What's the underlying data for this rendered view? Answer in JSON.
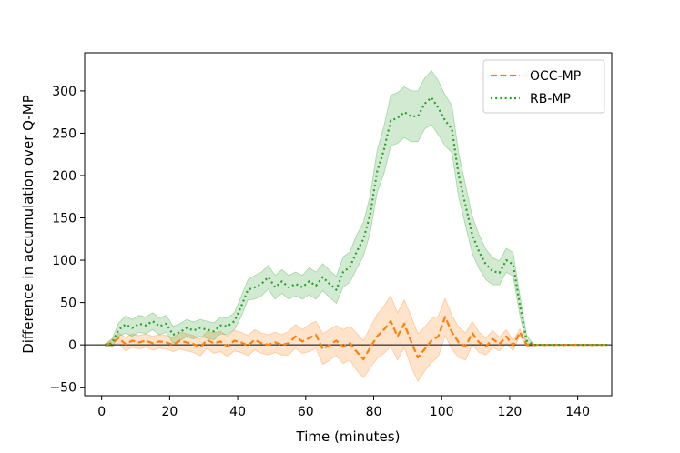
{
  "chart_data": {
    "type": "line",
    "xlabel": "Time (minutes)",
    "ylabel": "Difference in accumulation over Q-MP",
    "xlim": [
      -5,
      150
    ],
    "ylim": [
      -60,
      345
    ],
    "xticks": [
      0,
      20,
      40,
      60,
      80,
      100,
      120,
      140
    ],
    "yticks": [
      -50,
      0,
      50,
      100,
      150,
      200,
      250,
      300
    ],
    "grid": false,
    "legend_position": "top-right",
    "reference_line_y": 0,
    "series": [
      {
        "name": "OCC-MP",
        "color": "#ff7f0e",
        "line_style": "dashed",
        "x": [
          1,
          3,
          5,
          7,
          9,
          11,
          13,
          15,
          17,
          19,
          21,
          23,
          25,
          27,
          29,
          31,
          33,
          35,
          37,
          39,
          41,
          43,
          45,
          47,
          49,
          51,
          53,
          55,
          57,
          59,
          61,
          63,
          65,
          67,
          69,
          71,
          73,
          75,
          77,
          79,
          81,
          83,
          85,
          87,
          89,
          91,
          93,
          95,
          97,
          99,
          101,
          103,
          105,
          107,
          109,
          111,
          113,
          115,
          117,
          119,
          121,
          123,
          125,
          127,
          129,
          131,
          133,
          135,
          137,
          139,
          141,
          143,
          145,
          147,
          149
        ],
        "values": [
          0,
          2,
          8,
          1,
          5,
          3,
          5,
          2,
          4,
          3,
          0,
          5,
          3,
          1,
          -3,
          6,
          2,
          4,
          -2,
          5,
          3,
          -1,
          6,
          2,
          0,
          3,
          0,
          2,
          10,
          4,
          8,
          12,
          -5,
          0,
          5,
          -2,
          2,
          -8,
          -17,
          -3,
          10,
          18,
          28,
          10,
          25,
          4,
          -15,
          -5,
          5,
          10,
          33,
          15,
          3,
          -2,
          14,
          3,
          -2,
          7,
          1,
          10,
          -1,
          15,
          0,
          0,
          0,
          0,
          0,
          0,
          0,
          0,
          0,
          0,
          0,
          0,
          0
        ],
        "band_width": [
          1,
          4,
          6,
          8,
          8,
          8,
          8,
          8,
          8,
          8,
          8,
          10,
          10,
          10,
          10,
          10,
          12,
          12,
          12,
          12,
          12,
          12,
          12,
          12,
          12,
          12,
          12,
          14,
          14,
          14,
          16,
          16,
          18,
          18,
          18,
          20,
          20,
          22,
          22,
          24,
          26,
          28,
          30,
          28,
          28,
          30,
          28,
          26,
          26,
          24,
          22,
          20,
          18,
          16,
          14,
          12,
          10,
          10,
          8,
          8,
          6,
          4,
          2,
          1,
          0,
          0,
          0,
          0,
          0,
          0,
          0,
          0,
          0,
          0,
          0
        ]
      },
      {
        "name": "RB-MP",
        "color": "#2ca02c",
        "line_style": "dotted",
        "x": [
          1,
          3,
          5,
          7,
          9,
          11,
          13,
          15,
          17,
          19,
          21,
          23,
          25,
          27,
          29,
          31,
          33,
          35,
          37,
          39,
          41,
          43,
          45,
          47,
          49,
          51,
          53,
          55,
          57,
          59,
          61,
          63,
          65,
          67,
          69,
          71,
          73,
          75,
          77,
          79,
          81,
          83,
          85,
          87,
          89,
          91,
          93,
          95,
          97,
          99,
          101,
          103,
          105,
          107,
          109,
          111,
          113,
          115,
          117,
          119,
          121,
          123,
          125,
          127,
          129,
          131,
          133,
          135,
          137,
          139,
          141,
          143,
          145,
          147,
          149
        ],
        "values": [
          0,
          2,
          18,
          24,
          20,
          25,
          23,
          28,
          22,
          25,
          12,
          15,
          20,
          17,
          20,
          18,
          16,
          23,
          22,
          28,
          45,
          65,
          68,
          72,
          80,
          68,
          75,
          68,
          72,
          68,
          75,
          70,
          80,
          72,
          65,
          86,
          92,
          110,
          125,
          155,
          205,
          230,
          265,
          268,
          275,
          270,
          270,
          285,
          292,
          280,
          265,
          255,
          200,
          165,
          130,
          110,
          95,
          87,
          85,
          100,
          95,
          47,
          5,
          0,
          0,
          0,
          0,
          0,
          0,
          0,
          0,
          0,
          0,
          0,
          0
        ],
        "band_width": [
          1,
          5,
          8,
          10,
          10,
          10,
          10,
          10,
          10,
          10,
          10,
          10,
          10,
          10,
          10,
          10,
          10,
          10,
          10,
          10,
          12,
          12,
          14,
          14,
          14,
          14,
          14,
          14,
          14,
          14,
          16,
          16,
          16,
          16,
          16,
          18,
          18,
          20,
          20,
          22,
          25,
          28,
          30,
          30,
          30,
          30,
          30,
          30,
          32,
          32,
          30,
          28,
          26,
          24,
          22,
          20,
          18,
          16,
          14,
          14,
          14,
          12,
          6,
          1,
          0,
          0,
          0,
          0,
          0,
          0,
          0,
          0,
          0,
          0,
          0
        ]
      }
    ]
  }
}
